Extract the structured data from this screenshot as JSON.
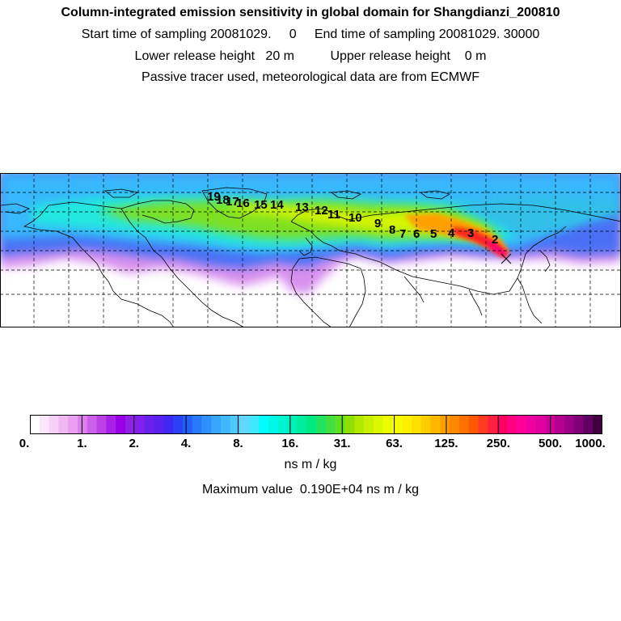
{
  "title": {
    "line1": "Column-integrated emission sensitivity in global domain for Shangdianzi_200810",
    "line2": "Start time of sampling 20081029.     0     End time of sampling 20081029. 30000",
    "line3": "Lower release height   20 m          Upper release height    0 m",
    "line4": "Passive tracer used, meteorological data are from ECMWF"
  },
  "trajectory_labels": [
    "2",
    "3",
    "4",
    "5",
    "6",
    "7",
    "8",
    "9",
    "10",
    "11",
    "12",
    "13",
    "14",
    "15",
    "16",
    "17",
    "18",
    "19"
  ],
  "colorbar": {
    "tick_labels": [
      "0.",
      "1.",
      "2.",
      "4.",
      "8.",
      "16.",
      "31.",
      "63.",
      "125.",
      "250.",
      "500.",
      "1000."
    ],
    "colors": [
      "#ffffff",
      "#fbe6fb",
      "#f6d0f6",
      "#f0b8f0",
      "#e9a0ee",
      "#dc80ec",
      "#cc60e8",
      "#bb40e6",
      "#a820e6",
      "#9a00e6",
      "#9020e6",
      "#8020ea",
      "#6a20ec",
      "#5a20f0",
      "#4028f4",
      "#2a40f6",
      "#2060f8",
      "#2878fa",
      "#3090fc",
      "#38a6fc",
      "#40b8fe",
      "#50c8fe",
      "#60d8fe",
      "#40e8fe",
      "#00fcfc",
      "#00f8e8",
      "#00f4d0",
      "#00f0b8",
      "#00ec9c",
      "#00e880",
      "#20e460",
      "#40e040",
      "#60e020",
      "#90e000",
      "#b0e800",
      "#c8f000",
      "#dcf800",
      "#eefc00",
      "#f8fc00",
      "#fff000",
      "#ffe000",
      "#ffcc00",
      "#ffb800",
      "#ffa000",
      "#ff8800",
      "#ff7000",
      "#ff5800",
      "#ff3a20",
      "#ff2040",
      "#ff0060",
      "#ff0080",
      "#ff0098",
      "#f000a0",
      "#e000a0",
      "#cc0098",
      "#b40090",
      "#9c0088",
      "#800078",
      "#600060",
      "#400040"
    ]
  },
  "units": "ns m / kg",
  "max_value": "Maximum value  0.190E+04 ns m / kg"
}
